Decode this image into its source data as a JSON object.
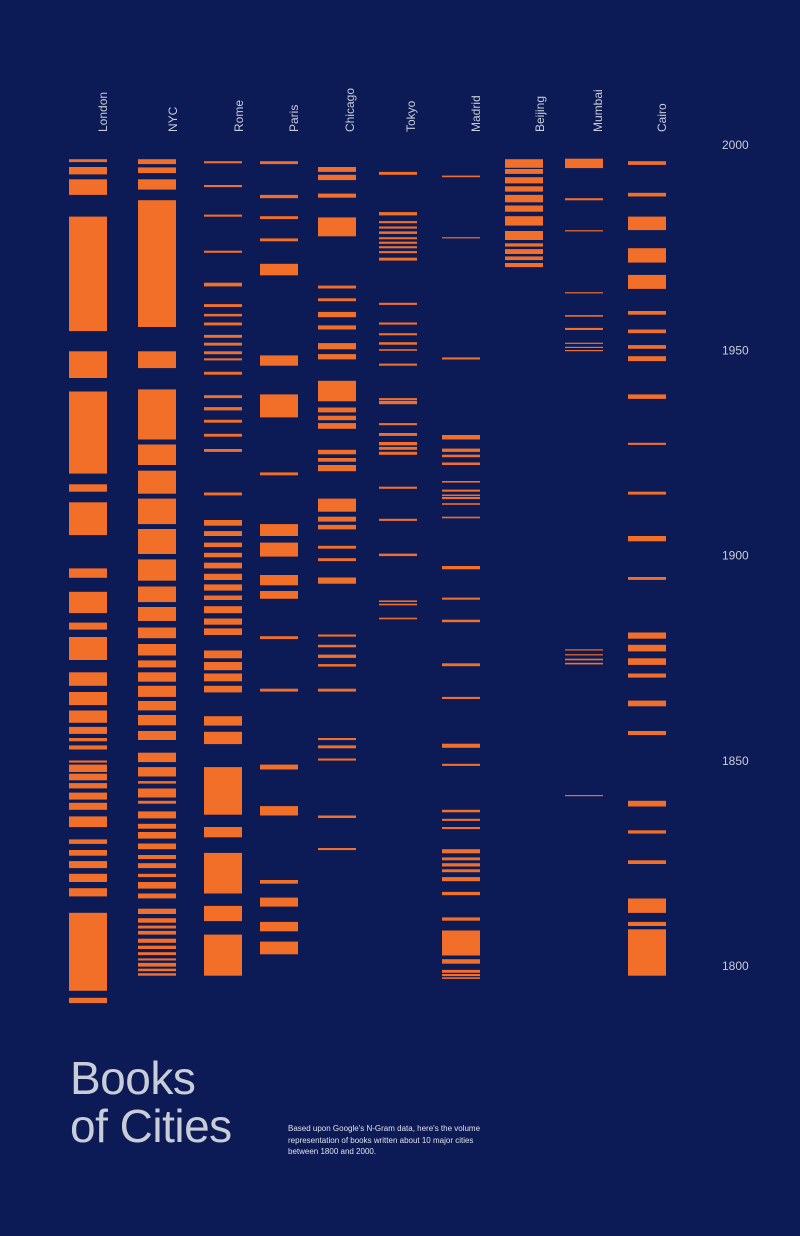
{
  "title_line1": "Books",
  "title_line2": "of Cities",
  "subtitle": "Based upon Google's N-Gram data, here's the volume representation of books written about 10 major cities between 1800 and 2000.",
  "colors": {
    "background": "#0c1a56",
    "bar": "#f26f2a",
    "text": "#c9cdd8"
  },
  "chart_data": {
    "type": "bar",
    "orientation": "vertical strip (year axis, bar thickness = volume)",
    "ylim": [
      1800,
      2000
    ],
    "yticks": [
      "2000",
      "1950",
      "1900",
      "1850",
      "1800"
    ],
    "series": [
      {
        "name": "London",
        "bands": [
          [
            1998.5,
            1997.8
          ],
          [
            1996.6,
            1994.8
          ],
          [
            1993.6,
            1989.8
          ],
          [
            1984.5,
            1956.6
          ],
          [
            1951.7,
            1945.2
          ],
          [
            1941.9,
            1921.9
          ],
          [
            1919.3,
            1917.5
          ],
          [
            1914.9,
            1906.9
          ],
          [
            1898.8,
            1896.5
          ],
          [
            1893.1,
            1887.9
          ],
          [
            1885.6,
            1883.9
          ],
          [
            1882.1,
            1876.5
          ],
          [
            1873.5,
            1870.2
          ],
          [
            1868.7,
            1865.5
          ],
          [
            1864.2,
            1861.2
          ],
          [
            1860.2,
            1858.5
          ],
          [
            1857.5,
            1856.7
          ],
          [
            1855.7,
            1854.7
          ],
          [
            1852.0,
            1851.5
          ],
          [
            1851.0,
            1849.2
          ],
          [
            1848.8,
            1847.2
          ],
          [
            1846.5,
            1845.2
          ],
          [
            1844.2,
            1842.5
          ],
          [
            1841.7,
            1840.0
          ],
          [
            1838.4,
            1835.8
          ],
          [
            1832.8,
            1831.7
          ],
          [
            1830.2,
            1828.8
          ],
          [
            1827.5,
            1825.8
          ],
          [
            1824.4,
            1822.4
          ],
          [
            1820.9,
            1818.9
          ],
          [
            1814.9,
            1795.9
          ],
          [
            1794.2,
            1792.9
          ]
        ]
      },
      {
        "name": "NYC",
        "bands": [
          [
            1998.5,
            1997.3
          ],
          [
            1996.5,
            1995.1
          ],
          [
            1993.6,
            1991.1
          ],
          [
            1988.5,
            1957.6
          ],
          [
            1951.7,
            1947.6
          ],
          [
            1942.4,
            1930.2
          ],
          [
            1929.0,
            1924.0
          ],
          [
            1922.6,
            1917.0
          ],
          [
            1915.8,
            1909.6
          ],
          [
            1908.4,
            1902.3
          ],
          [
            1901.0,
            1895.8
          ],
          [
            1894.4,
            1890.6
          ],
          [
            1889.4,
            1886.0
          ],
          [
            1884.4,
            1881.8
          ],
          [
            1880.4,
            1877.6
          ],
          [
            1876.4,
            1874.7
          ],
          [
            1873.5,
            1871.2
          ],
          [
            1870.2,
            1867.5
          ],
          [
            1866.5,
            1864.2
          ],
          [
            1863.1,
            1860.6
          ],
          [
            1859.2,
            1857.0
          ],
          [
            1853.9,
            1851.6
          ],
          [
            1850.4,
            1848.1
          ],
          [
            1847.0,
            1846.4
          ],
          [
            1845.2,
            1843.0
          ],
          [
            1842.2,
            1841.5
          ],
          [
            1839.6,
            1837.9
          ],
          [
            1836.6,
            1835.4
          ],
          [
            1834.6,
            1833.0
          ],
          [
            1831.8,
            1830.4
          ],
          [
            1829.0,
            1828.0
          ],
          [
            1827.0,
            1825.8
          ],
          [
            1824.4,
            1823.6
          ],
          [
            1822.4,
            1820.8
          ],
          [
            1819.6,
            1818.4
          ],
          [
            1815.9,
            1814.6
          ],
          [
            1813.6,
            1812.5
          ],
          [
            1811.8,
            1811.1
          ],
          [
            1810.5,
            1809.6
          ],
          [
            1808.6,
            1807.6
          ],
          [
            1806.9,
            1806.1
          ],
          [
            1805.3,
            1804.6
          ],
          [
            1803.8,
            1803.3
          ],
          [
            1802.7,
            1801.8
          ],
          [
            1801.3,
            1800.7
          ],
          [
            1800.2,
            1799.6
          ]
        ]
      },
      {
        "name": "Rome",
        "bands": [
          [
            1998.0,
            1997.5
          ],
          [
            1992.2,
            1991.7
          ],
          [
            1985.0,
            1984.5
          ],
          [
            1976.2,
            1975.7
          ],
          [
            1968.4,
            1967.5
          ],
          [
            1963.2,
            1962.5
          ],
          [
            1960.8,
            1960.2
          ],
          [
            1958.7,
            1958.0
          ],
          [
            1955.7,
            1955.0
          ],
          [
            1953.8,
            1953.1
          ],
          [
            1951.7,
            1951.0
          ],
          [
            1950.0,
            1949.5
          ],
          [
            1946.7,
            1946.0
          ],
          [
            1941.0,
            1940.3
          ],
          [
            1938.1,
            1937.3
          ],
          [
            1935.0,
            1934.3
          ],
          [
            1931.6,
            1930.9
          ],
          [
            1927.9,
            1927.2
          ],
          [
            1917.3,
            1916.6
          ],
          [
            1910.6,
            1909.2
          ],
          [
            1907.9,
            1906.7
          ],
          [
            1905.1,
            1904.0
          ],
          [
            1902.6,
            1901.5
          ],
          [
            1900.2,
            1898.8
          ],
          [
            1897.5,
            1896.0
          ],
          [
            1894.9,
            1893.4
          ],
          [
            1892.2,
            1891.1
          ],
          [
            1889.6,
            1887.9
          ],
          [
            1886.6,
            1885.1
          ],
          [
            1884.2,
            1882.6
          ],
          [
            1878.8,
            1876.9
          ],
          [
            1876.0,
            1874.0
          ],
          [
            1873.2,
            1871.3
          ],
          [
            1870.2,
            1868.6
          ],
          [
            1862.8,
            1860.5
          ],
          [
            1859.0,
            1856.0
          ],
          [
            1850.4,
            1838.8
          ],
          [
            1835.8,
            1833.3
          ],
          [
            1829.5,
            1819.6
          ],
          [
            1816.6,
            1812.9
          ],
          [
            1809.6,
            1799.6
          ]
        ]
      },
      {
        "name": "Paris",
        "bands": [
          [
            1998.0,
            1997.3
          ],
          [
            1989.8,
            1989.0
          ],
          [
            1984.6,
            1983.9
          ],
          [
            1979.2,
            1978.5
          ],
          [
            1973.0,
            1970.2
          ],
          [
            1950.7,
            1948.2
          ],
          [
            1941.2,
            1935.6
          ],
          [
            1922.2,
            1921.5
          ],
          [
            1909.6,
            1906.7
          ],
          [
            1905.1,
            1901.7
          ],
          [
            1897.2,
            1894.7
          ],
          [
            1893.3,
            1891.4
          ],
          [
            1882.3,
            1881.6
          ],
          [
            1869.5,
            1868.8
          ],
          [
            1851.0,
            1849.8
          ],
          [
            1840.9,
            1838.6
          ],
          [
            1822.9,
            1822.0
          ],
          [
            1818.6,
            1816.4
          ],
          [
            1812.7,
            1810.4
          ],
          [
            1807.9,
            1804.8
          ]
        ]
      },
      {
        "name": "Chicago",
        "bands": [
          [
            1996.6,
            1995.4
          ],
          [
            1994.7,
            1993.4
          ],
          [
            1990.1,
            1989.1
          ],
          [
            1984.3,
            1979.7
          ],
          [
            1967.7,
            1967.0
          ],
          [
            1964.6,
            1963.9
          ],
          [
            1961.3,
            1960.0
          ],
          [
            1958.0,
            1957.0
          ],
          [
            1953.7,
            1952.2
          ],
          [
            1951.0,
            1949.7
          ],
          [
            1944.5,
            1939.5
          ],
          [
            1938.0,
            1936.8
          ],
          [
            1936.0,
            1934.9
          ],
          [
            1934.2,
            1932.8
          ],
          [
            1927.7,
            1926.6
          ],
          [
            1925.7,
            1924.8
          ],
          [
            1924.0,
            1922.5
          ],
          [
            1915.8,
            1912.6
          ],
          [
            1911.4,
            1910.2
          ],
          [
            1909.4,
            1908.3
          ],
          [
            1904.3,
            1903.6
          ],
          [
            1901.3,
            1900.6
          ],
          [
            1896.6,
            1895.1
          ],
          [
            1882.7,
            1882.2
          ],
          [
            1880.2,
            1879.6
          ],
          [
            1877.8,
            1877.0
          ],
          [
            1875.5,
            1874.9
          ],
          [
            1869.5,
            1868.8
          ],
          [
            1857.5,
            1857.0
          ],
          [
            1855.7,
            1855.0
          ],
          [
            1852.5,
            1852.0
          ],
          [
            1838.6,
            1838.0
          ],
          [
            1830.7,
            1830.2
          ]
        ]
      },
      {
        "name": "Tokyo",
        "bands": [
          [
            1995.4,
            1994.7
          ],
          [
            1985.6,
            1984.8
          ],
          [
            1983.4,
            1982.9
          ],
          [
            1982.1,
            1981.6
          ],
          [
            1980.9,
            1980.3
          ],
          [
            1979.5,
            1979.0
          ],
          [
            1978.4,
            1977.9
          ],
          [
            1977.3,
            1976.8
          ],
          [
            1976.1,
            1975.6
          ],
          [
            1974.5,
            1973.8
          ],
          [
            1963.5,
            1963.0
          ],
          [
            1958.7,
            1958.2
          ],
          [
            1956.1,
            1955.6
          ],
          [
            1953.9,
            1953.3
          ],
          [
            1952.2,
            1951.8
          ],
          [
            1948.7,
            1948.2
          ],
          [
            1940.3,
            1939.8
          ],
          [
            1939.6,
            1938.8
          ],
          [
            1934.2,
            1933.7
          ],
          [
            1931.8,
            1931.1
          ],
          [
            1929.6,
            1928.8
          ],
          [
            1928.4,
            1927.7
          ],
          [
            1927.2,
            1926.6
          ],
          [
            1927.0,
            1926.5
          ],
          [
            1918.7,
            1918.2
          ],
          [
            1910.9,
            1910.4
          ],
          [
            1902.4,
            1901.8
          ],
          [
            1891.0,
            1890.6
          ],
          [
            1890.2,
            1889.8
          ],
          [
            1886.8,
            1886.4
          ]
        ]
      },
      {
        "name": "Madrid",
        "bands": [
          [
            1994.5,
            1994.1
          ],
          [
            1979.5,
            1979.2
          ],
          [
            1950.2,
            1949.7
          ],
          [
            1931.3,
            1930.2
          ],
          [
            1928.0,
            1927.2
          ],
          [
            1926.5,
            1925.9
          ],
          [
            1924.6,
            1924.0
          ],
          [
            1920.1,
            1919.7
          ],
          [
            1918.0,
            1917.5
          ],
          [
            1916.8,
            1916.4
          ],
          [
            1916.2,
            1915.7
          ],
          [
            1914.7,
            1914.3
          ],
          [
            1911.4,
            1911.0
          ],
          [
            1899.4,
            1898.6
          ],
          [
            1891.7,
            1891.2
          ],
          [
            1886.3,
            1885.7
          ],
          [
            1875.7,
            1875.0
          ],
          [
            1867.5,
            1867.0
          ],
          [
            1856.1,
            1855.1
          ],
          [
            1851.2,
            1850.7
          ],
          [
            1840.0,
            1839.4
          ],
          [
            1837.8,
            1837.3
          ],
          [
            1835.8,
            1835.3
          ],
          [
            1830.4,
            1829.4
          ],
          [
            1828.4,
            1827.7
          ],
          [
            1827.0,
            1826.2
          ],
          [
            1825.5,
            1824.8
          ],
          [
            1823.6,
            1822.6
          ],
          [
            1820.0,
            1819.2
          ],
          [
            1813.8,
            1813.0
          ],
          [
            1810.6,
            1804.5
          ],
          [
            1803.6,
            1802.5
          ],
          [
            1801.0,
            1800.3
          ],
          [
            1800.0,
            1799.5
          ],
          [
            1799.2,
            1798.8
          ]
        ]
      },
      {
        "name": "Beijing",
        "bands": [
          [
            1998.5,
            1996.4
          ],
          [
            1996.1,
            1994.9
          ],
          [
            1994.1,
            1992.6
          ],
          [
            1991.9,
            1990.6
          ],
          [
            1989.8,
            1988.0
          ],
          [
            1987.2,
            1985.7
          ],
          [
            1984.6,
            1982.3
          ],
          [
            1981.0,
            1978.8
          ],
          [
            1978.0,
            1977.2
          ],
          [
            1976.6,
            1975.4
          ],
          [
            1974.8,
            1973.9
          ],
          [
            1973.2,
            1972.2
          ]
        ]
      },
      {
        "name": "Mumbai",
        "bands": [
          [
            1998.6,
            1996.3
          ],
          [
            1989.0,
            1988.5
          ],
          [
            1981.2,
            1980.9
          ],
          [
            1966.1,
            1965.8
          ],
          [
            1960.5,
            1960.1
          ],
          [
            1957.4,
            1956.9
          ],
          [
            1953.8,
            1953.5
          ],
          [
            1952.8,
            1952.5
          ],
          [
            1952.0,
            1951.7
          ],
          [
            1879.1,
            1878.8
          ],
          [
            1877.9,
            1877.6
          ],
          [
            1876.8,
            1876.4
          ],
          [
            1875.8,
            1875.4
          ],
          [
            1843.6,
            1843.3
          ]
        ]
      },
      {
        "name": "Cairo",
        "bands": [
          [
            1998.0,
            1997.1
          ],
          [
            1990.3,
            1989.4
          ],
          [
            1984.5,
            1981.2
          ],
          [
            1976.8,
            1973.3
          ],
          [
            1970.3,
            1966.9
          ],
          [
            1961.5,
            1960.6
          ],
          [
            1957.0,
            1956.1
          ],
          [
            1953.2,
            1952.3
          ],
          [
            1950.5,
            1949.3
          ],
          [
            1941.2,
            1940.1
          ],
          [
            1929.4,
            1928.9
          ],
          [
            1917.5,
            1916.8
          ],
          [
            1906.7,
            1905.4
          ],
          [
            1896.7,
            1896.0
          ],
          [
            1883.2,
            1881.7
          ],
          [
            1880.2,
            1878.6
          ],
          [
            1876.9,
            1875.3
          ],
          [
            1873.2,
            1872.2
          ],
          [
            1866.6,
            1865.2
          ],
          [
            1859.2,
            1858.2
          ],
          [
            1842.2,
            1840.8
          ],
          [
            1835.0,
            1834.2
          ],
          [
            1827.7,
            1826.8
          ],
          [
            1818.4,
            1814.9
          ],
          [
            1812.7,
            1811.7
          ],
          [
            1810.9,
            1799.6
          ]
        ]
      }
    ]
  }
}
